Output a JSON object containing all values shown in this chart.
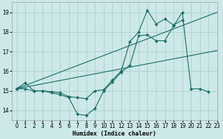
{
  "xlabel": "Humidex (Indice chaleur)",
  "xlim": [
    -0.5,
    23
  ],
  "ylim": [
    13.5,
    19.5
  ],
  "yticks": [
    14,
    15,
    16,
    17,
    18,
    19
  ],
  "xticks": [
    0,
    1,
    2,
    3,
    4,
    5,
    6,
    7,
    8,
    9,
    10,
    11,
    12,
    13,
    14,
    15,
    16,
    17,
    18,
    19,
    20,
    21,
    22,
    23
  ],
  "bg_color": "#cde8e8",
  "grid_color": "#aacece",
  "line_color": "#1a6e6a",
  "line1_y": [
    15.1,
    15.4,
    15.0,
    15.0,
    14.9,
    14.8,
    14.65,
    13.8,
    13.75,
    14.1,
    15.0,
    15.45,
    15.95,
    16.3,
    17.8,
    17.85,
    17.55,
    17.55,
    18.3,
    19.0,
    15.1,
    15.1,
    14.95,
    null
  ],
  "line2_y": [
    15.1,
    15.1,
    15.0,
    15.0,
    14.95,
    14.9,
    14.7,
    14.65,
    14.6,
    15.0,
    15.05,
    15.55,
    16.0,
    17.5,
    18.0,
    19.1,
    18.4,
    18.65,
    18.35,
    18.6,
    null,
    null,
    null,
    null
  ],
  "line3_x": [
    0,
    23
  ],
  "line3_y": [
    15.1,
    19.0
  ],
  "line4_x": [
    0,
    23
  ],
  "line4_y": [
    15.1,
    17.05
  ]
}
